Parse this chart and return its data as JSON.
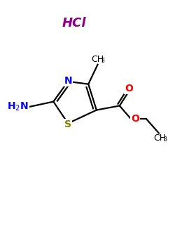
{
  "bg_color": "#ffffff",
  "hcl_text": "HCl",
  "hcl_color": "#8b008b",
  "S_color": "#808000",
  "N_color": "#0000ff",
  "O_color": "#ff0000",
  "NH2_color": "#0000ff",
  "C_color": "#000000",
  "lw": 1.6,
  "figsize": [
    2.5,
    3.5
  ],
  "dpi": 100,
  "xlim": [
    0,
    10
  ],
  "ylim": [
    0,
    14
  ]
}
